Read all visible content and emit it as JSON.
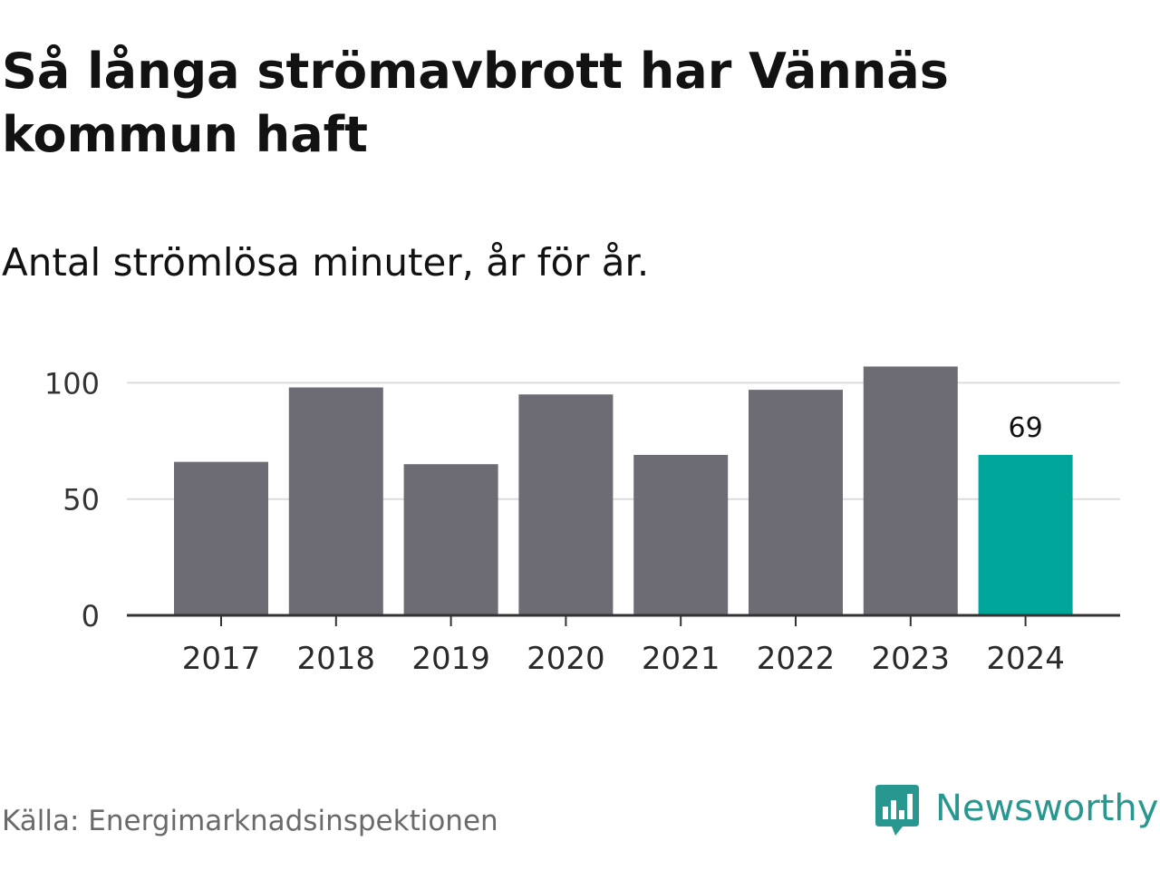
{
  "title": "Så långa strömavbrott har Vännäs kommun haft",
  "subtitle": "Antal strömlösa minuter, år för år.",
  "source": "Källa: Energimarknadsinspektionen",
  "brand": {
    "name": "Newsworthy",
    "logo_icon": "newsworthy-chat-bars-icon",
    "color": "#27978f"
  },
  "colors": {
    "bar_default": "#6d6c74",
    "bar_highlight": "#00a599",
    "grid": "#dcdcdc",
    "axis": "#333333",
    "text": "#121212"
  },
  "chart_data": {
    "type": "bar",
    "categories": [
      "2017",
      "2018",
      "2019",
      "2020",
      "2021",
      "2022",
      "2023",
      "2024"
    ],
    "values": [
      66,
      98,
      65,
      95,
      69,
      97,
      107,
      69
    ],
    "highlight_index": 7,
    "data_labels": [
      {
        "index": 7,
        "text": "69"
      }
    ],
    "yticks": [
      0,
      50,
      100
    ],
    "ylim": [
      0,
      107
    ],
    "grid": true,
    "xlabel": "",
    "ylabel": ""
  }
}
